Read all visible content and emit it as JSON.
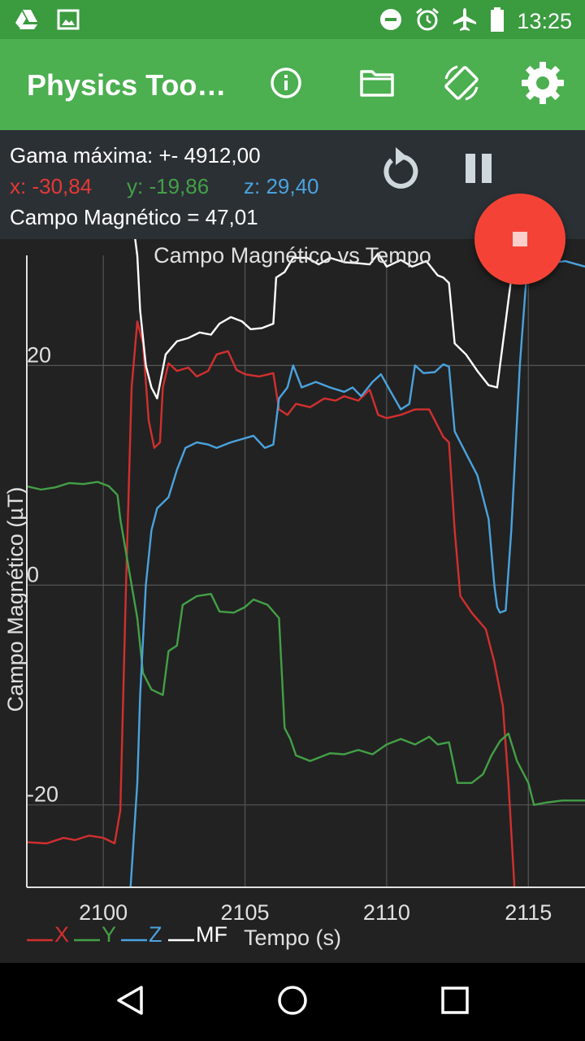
{
  "status_bar": {
    "time": "13:25",
    "left_icons": [
      "drive-icon",
      "image-icon"
    ],
    "right_icons": [
      "dnd-icon",
      "alarm-icon",
      "airplane-icon",
      "battery-icon"
    ]
  },
  "app_bar": {
    "title": "Physics Too…",
    "actions": [
      "info-icon",
      "folder-icon",
      "screen-rotation-icon",
      "settings-icon"
    ]
  },
  "readout": {
    "gama": "Gama máxima: +- 4912,00",
    "x": "x: -30,84",
    "y": "y: -19,86",
    "z": "z: 29,40",
    "campo": "Campo Magnético =  47,01"
  },
  "colors": {
    "x": "#d32f2f",
    "y": "#43a047",
    "z": "#4aa3df",
    "mf": "#ffffff",
    "accent": "#4caf50",
    "fab": "#f44336"
  },
  "chart_data": {
    "type": "line",
    "title": "Campo Magnético vs Tempo",
    "xlabel": "Tempo (s)",
    "ylabel": "Campo Magnético (µT)",
    "xlim": [
      2097.3,
      2117.0
    ],
    "ylim": [
      -27.5,
      31.5
    ],
    "xticks": [
      2100,
      2105,
      2110,
      2115
    ],
    "xtick_labels": [
      "2100",
      "2105",
      "2110",
      "2115"
    ],
    "yticks": [
      -20,
      0,
      20
    ],
    "ytick_labels": [
      "-20",
      "0",
      "20"
    ],
    "grid": true,
    "legend": "bottom-left",
    "series": [
      {
        "name": "X",
        "color": "#d32f2f",
        "points": [
          [
            2097.3,
            -23.4
          ],
          [
            2098.0,
            -23.5
          ],
          [
            2098.6,
            -23.0
          ],
          [
            2099.0,
            -23.2
          ],
          [
            2099.5,
            -22.8
          ],
          [
            2100.0,
            -23.0
          ],
          [
            2100.4,
            -23.5
          ],
          [
            2100.6,
            -20.5
          ],
          [
            2100.8,
            0.0
          ],
          [
            2101.0,
            18.0
          ],
          [
            2101.2,
            24.0
          ],
          [
            2101.4,
            22.0
          ],
          [
            2101.6,
            15.0
          ],
          [
            2101.8,
            12.5
          ],
          [
            2102.0,
            13.0
          ],
          [
            2102.1,
            18.0
          ],
          [
            2102.3,
            20.2
          ],
          [
            2102.6,
            19.5
          ],
          [
            2103.0,
            19.8
          ],
          [
            2103.3,
            19.0
          ],
          [
            2103.7,
            19.5
          ],
          [
            2104.0,
            21.0
          ],
          [
            2104.4,
            21.3
          ],
          [
            2104.7,
            19.6
          ],
          [
            2105.0,
            19.2
          ],
          [
            2105.5,
            19.0
          ],
          [
            2106.0,
            19.3
          ],
          [
            2106.2,
            16.0
          ],
          [
            2106.5,
            15.5
          ],
          [
            2106.8,
            16.5
          ],
          [
            2107.3,
            16.2
          ],
          [
            2107.8,
            17.0
          ],
          [
            2108.2,
            16.8
          ],
          [
            2108.5,
            17.2
          ],
          [
            2109.0,
            16.8
          ],
          [
            2109.4,
            17.8
          ],
          [
            2109.7,
            15.5
          ],
          [
            2110.0,
            15.2
          ],
          [
            2110.5,
            15.5
          ],
          [
            2111.0,
            16.0
          ],
          [
            2111.5,
            16.0
          ],
          [
            2112.0,
            13.5
          ],
          [
            2112.2,
            13.0
          ],
          [
            2112.4,
            5.0
          ],
          [
            2112.6,
            -1.0
          ],
          [
            2113.0,
            -2.5
          ],
          [
            2113.5,
            -4.0
          ],
          [
            2113.8,
            -7.0
          ],
          [
            2114.1,
            -11.0
          ],
          [
            2114.3,
            -18.0
          ],
          [
            2114.5,
            -27.0
          ],
          [
            2114.6,
            -35.0
          ]
        ]
      },
      {
        "name": "Y",
        "color": "#43a047",
        "points": [
          [
            2097.3,
            9.0
          ],
          [
            2097.8,
            8.7
          ],
          [
            2098.3,
            8.9
          ],
          [
            2098.8,
            9.3
          ],
          [
            2099.3,
            9.2
          ],
          [
            2099.8,
            9.4
          ],
          [
            2100.2,
            9.0
          ],
          [
            2100.5,
            8.2
          ],
          [
            2100.6,
            6.0
          ],
          [
            2100.9,
            1.5
          ],
          [
            2101.2,
            -3.0
          ],
          [
            2101.4,
            -8.0
          ],
          [
            2101.7,
            -9.5
          ],
          [
            2102.1,
            -10.0
          ],
          [
            2102.3,
            -6.0
          ],
          [
            2102.6,
            -5.5
          ],
          [
            2102.8,
            -1.8
          ],
          [
            2103.3,
            -1.0
          ],
          [
            2103.8,
            -0.8
          ],
          [
            2104.1,
            -2.4
          ],
          [
            2104.6,
            -2.5
          ],
          [
            2105.0,
            -2.0
          ],
          [
            2105.3,
            -1.3
          ],
          [
            2105.8,
            -1.8
          ],
          [
            2106.2,
            -3.0
          ],
          [
            2106.4,
            -13.0
          ],
          [
            2106.6,
            -14.0
          ],
          [
            2106.8,
            -15.5
          ],
          [
            2107.3,
            -16.0
          ],
          [
            2108.0,
            -15.3
          ],
          [
            2108.5,
            -15.4
          ],
          [
            2109.0,
            -15.0
          ],
          [
            2109.5,
            -15.4
          ],
          [
            2110.0,
            -14.5
          ],
          [
            2110.5,
            -14.0
          ],
          [
            2111.0,
            -14.5
          ],
          [
            2111.5,
            -13.8
          ],
          [
            2111.8,
            -14.5
          ],
          [
            2112.2,
            -14.3
          ],
          [
            2112.5,
            -18.0
          ],
          [
            2113.0,
            -18.0
          ],
          [
            2113.4,
            -17.2
          ],
          [
            2113.7,
            -15.5
          ],
          [
            2114.0,
            -14.2
          ],
          [
            2114.3,
            -13.5
          ],
          [
            2114.6,
            -16.0
          ],
          [
            2115.0,
            -18.0
          ],
          [
            2115.2,
            -20.0
          ],
          [
            2115.6,
            -19.8
          ],
          [
            2116.2,
            -19.6
          ],
          [
            2117.0,
            -19.6
          ]
        ]
      },
      {
        "name": "Z",
        "color": "#4aa3df",
        "points": [
          [
            2100.9,
            -30.0
          ],
          [
            2101.2,
            -18.0
          ],
          [
            2101.3,
            -10.0
          ],
          [
            2101.5,
            0.0
          ],
          [
            2101.7,
            5.0
          ],
          [
            2101.9,
            7.0
          ],
          [
            2102.3,
            8.0
          ],
          [
            2102.6,
            10.5
          ],
          [
            2102.9,
            12.5
          ],
          [
            2103.3,
            13.0
          ],
          [
            2103.7,
            12.8
          ],
          [
            2104.0,
            12.5
          ],
          [
            2104.5,
            13.0
          ],
          [
            2104.9,
            13.3
          ],
          [
            2105.3,
            13.6
          ],
          [
            2105.7,
            12.5
          ],
          [
            2106.0,
            12.8
          ],
          [
            2106.2,
            17.0
          ],
          [
            2106.5,
            18.0
          ],
          [
            2106.7,
            20.0
          ],
          [
            2107.0,
            18.0
          ],
          [
            2107.5,
            18.5
          ],
          [
            2108.0,
            18.0
          ],
          [
            2108.5,
            17.6
          ],
          [
            2108.8,
            18.0
          ],
          [
            2109.1,
            17.2
          ],
          [
            2109.5,
            18.5
          ],
          [
            2109.8,
            19.2
          ],
          [
            2110.1,
            17.8
          ],
          [
            2110.5,
            16.0
          ],
          [
            2110.8,
            16.5
          ],
          [
            2111.0,
            20.0
          ],
          [
            2111.3,
            19.3
          ],
          [
            2111.7,
            19.4
          ],
          [
            2112.0,
            20.1
          ],
          [
            2112.2,
            19.9
          ],
          [
            2112.4,
            14.0
          ],
          [
            2112.8,
            12.0
          ],
          [
            2113.2,
            10.0
          ],
          [
            2113.6,
            6.0
          ],
          [
            2113.8,
            0.0
          ],
          [
            2113.9,
            -2.0
          ],
          [
            2114.0,
            -2.5
          ],
          [
            2114.2,
            -2.3
          ],
          [
            2114.4,
            5.0
          ],
          [
            2114.7,
            20.0
          ],
          [
            2114.9,
            27.0
          ],
          [
            2115.0,
            29.4
          ],
          [
            2115.5,
            29.2
          ],
          [
            2116.3,
            29.5
          ],
          [
            2117.0,
            29.0
          ]
        ]
      },
      {
        "name": "MF",
        "color": "#ffffff",
        "points": [
          [
            2101.1,
            32.0
          ],
          [
            2101.2,
            30.0
          ],
          [
            2101.3,
            25.0
          ],
          [
            2101.5,
            20.0
          ],
          [
            2101.7,
            18.0
          ],
          [
            2101.9,
            17.0
          ],
          [
            2102.2,
            21.0
          ],
          [
            2102.6,
            22.2
          ],
          [
            2103.0,
            22.5
          ],
          [
            2103.4,
            23.0
          ],
          [
            2103.8,
            22.8
          ],
          [
            2104.1,
            23.8
          ],
          [
            2104.5,
            24.4
          ],
          [
            2104.9,
            24.0
          ],
          [
            2105.2,
            23.3
          ],
          [
            2105.6,
            23.4
          ],
          [
            2106.0,
            23.8
          ],
          [
            2106.1,
            28.0
          ],
          [
            2106.4,
            28.5
          ],
          [
            2106.7,
            29.8
          ],
          [
            2107.2,
            29.8
          ],
          [
            2107.6,
            29.2
          ],
          [
            2108.0,
            29.8
          ],
          [
            2108.5,
            29.4
          ],
          [
            2109.0,
            29.3
          ],
          [
            2109.4,
            29.2
          ],
          [
            2109.7,
            30.2
          ],
          [
            2110.0,
            29.0
          ],
          [
            2110.5,
            29.6
          ],
          [
            2110.9,
            29.0
          ],
          [
            2111.4,
            29.5
          ],
          [
            2111.8,
            28.2
          ],
          [
            2112.0,
            28.0
          ],
          [
            2112.2,
            27.5
          ],
          [
            2112.4,
            22.0
          ],
          [
            2112.8,
            21.0
          ],
          [
            2113.2,
            19.5
          ],
          [
            2113.6,
            18.2
          ],
          [
            2113.9,
            18.0
          ],
          [
            2114.2,
            24.0
          ],
          [
            2114.5,
            30.0
          ],
          [
            2114.7,
            32.0
          ]
        ]
      }
    ]
  },
  "nav_bar": {
    "buttons": [
      "back-icon",
      "home-icon",
      "recents-icon"
    ]
  }
}
